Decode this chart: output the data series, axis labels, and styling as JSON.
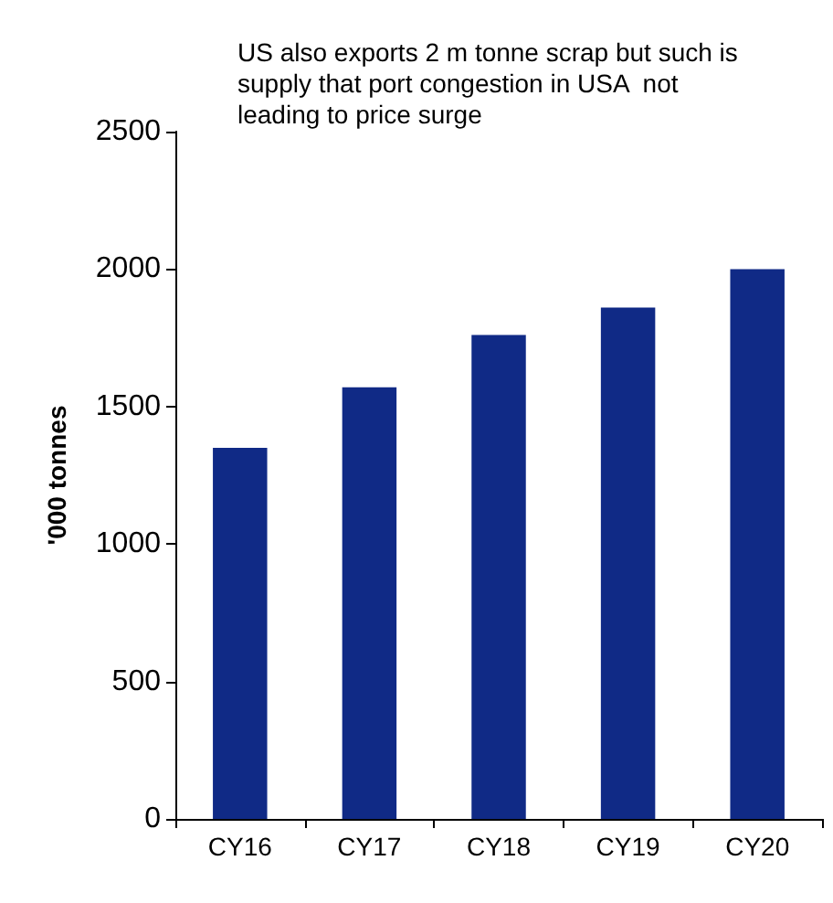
{
  "chart_data": {
    "type": "bar",
    "ylabel": "'000 tonnes",
    "annotations": [
      "US also exports 2 m tonne scrap but such is supply that port congestion in USA  not leading to price surge"
    ],
    "categories": [
      "CY16",
      "CY17",
      "CY18",
      "CY19",
      "CY20"
    ],
    "values": [
      1350,
      1570,
      1760,
      1860,
      2000
    ],
    "color": "#102a86",
    "ylim": [
      0,
      2500
    ],
    "yticks": [
      0,
      500,
      1000,
      1500,
      2000,
      2500
    ],
    "grid": false
  }
}
